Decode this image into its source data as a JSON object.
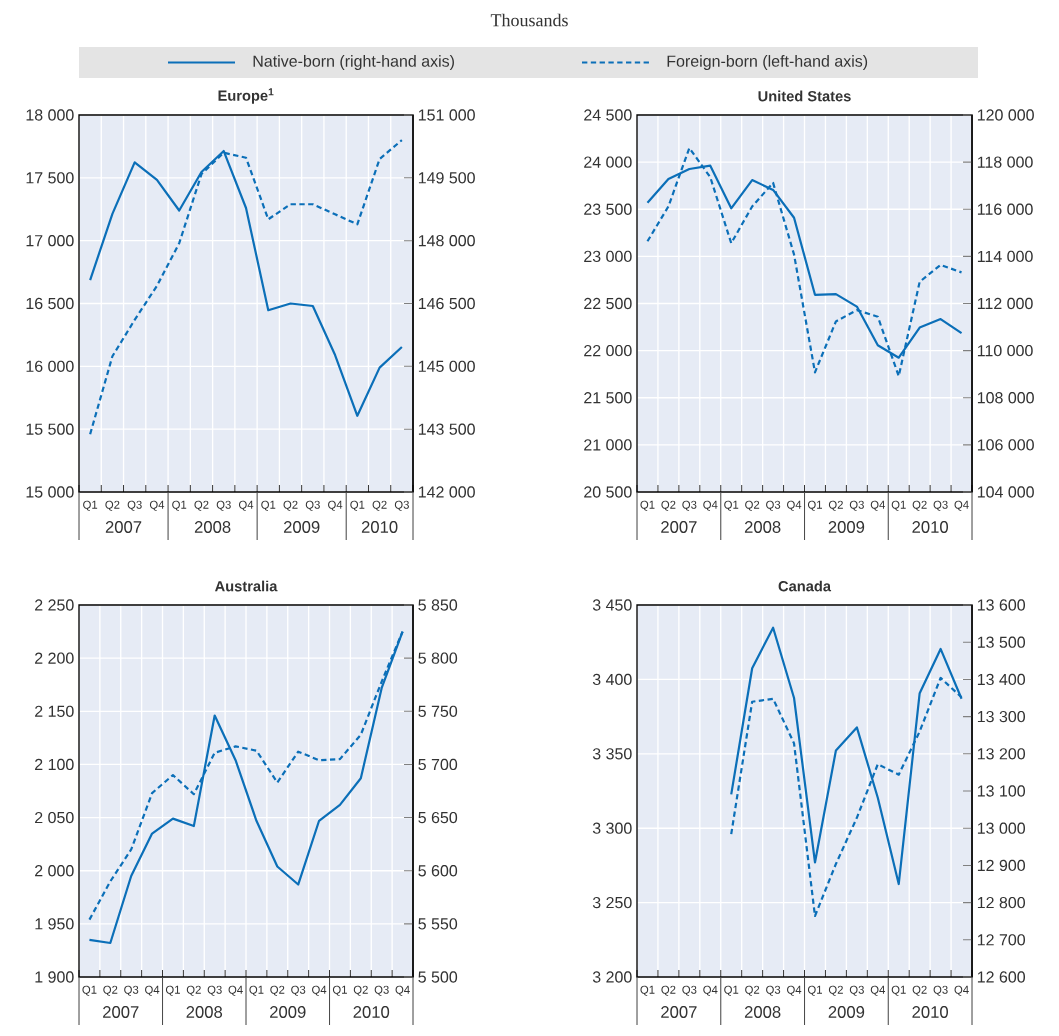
{
  "chart_data": [
    {
      "type": "other",
      "subtitle": "Thousands"
    },
    {
      "type": "line",
      "title": "Europe$^{1}$",
      "legend": "top",
      "grid": true,
      "categories": [
        "Q1",
        "Q2",
        "Q3",
        "Q4",
        "Q1",
        "Q2",
        "Q3",
        "Q4",
        "Q1",
        "Q2",
        "Q3",
        "Q4",
        "Q1",
        "Q2",
        "Q3"
      ],
      "annotations": [
        "2007",
        "2008",
        "2009",
        "2010"
      ],
      "ylim": [
        15000,
        18000
      ],
      "yticks": [
        {
          "value": 15000,
          "label": "15 000"
        },
        {
          "value": 15500,
          "label": "15 500"
        },
        {
          "value": 16000,
          "label": "16 000"
        },
        {
          "value": 16500,
          "label": "16 500"
        },
        {
          "value": 17000,
          "label": "17 000"
        },
        {
          "value": 17500,
          "label": "17 500"
        },
        {
          "value": 18000,
          "label": "18 000"
        }
      ],
      "y2lim": [
        142000,
        151000
      ],
      "y2ticks": [
        {
          "value": 142000,
          "label": "142 000"
        },
        {
          "value": 143500,
          "label": "143 500"
        },
        {
          "value": 145000,
          "label": "145 000"
        },
        {
          "value": 146500,
          "label": "146 500"
        },
        {
          "value": 148000,
          "label": "148 000"
        },
        {
          "value": 149500,
          "label": "149 500"
        },
        {
          "value": 151000,
          "label": "151 000"
        }
      ],
      "series": [
        {
          "name": "Native-born (right-hand axis)",
          "axis": "y2",
          "line_style": "solid",
          "color": "#0b6fb8",
          "values": [
            147060,
            148640,
            149870,
            149450,
            148720,
            149640,
            150140,
            148780,
            146340,
            146500,
            146440,
            145270,
            143820,
            144970,
            145460
          ]
        },
        {
          "name": "Foreign-born (left-hand axis)",
          "axis": "y",
          "line_style": "dashed",
          "color": "#0b6fb8",
          "values": [
            15460,
            16080,
            16370,
            16640,
            16980,
            17530,
            17700,
            17660,
            17170,
            17290,
            17290,
            17210,
            17130,
            17650,
            17800
          ]
        }
      ]
    },
    {
      "type": "line",
      "title": "United States",
      "grid": true,
      "categories": [
        "Q1",
        "Q2",
        "Q3",
        "Q4",
        "Q1",
        "Q2",
        "Q3",
        "Q4",
        "Q1",
        "Q2",
        "Q3",
        "Q4",
        "Q1",
        "Q2",
        "Q3",
        "Q4"
      ],
      "annotations": [
        "2007",
        "2008",
        "2009",
        "2010"
      ],
      "ylim": [
        20500,
        24500
      ],
      "yticks": [
        {
          "value": 20500,
          "label": "20 500"
        },
        {
          "value": 21000,
          "label": "21 000"
        },
        {
          "value": 21500,
          "label": "21 500"
        },
        {
          "value": 22000,
          "label": "22 000"
        },
        {
          "value": 22500,
          "label": "22 500"
        },
        {
          "value": 23000,
          "label": "23 000"
        },
        {
          "value": 23500,
          "label": "23 500"
        },
        {
          "value": 24000,
          "label": "24 000"
        },
        {
          "value": 24500,
          "label": "24 500"
        }
      ],
      "y2lim": [
        104000,
        120000
      ],
      "y2ticks": [
        {
          "value": 104000,
          "label": "104 000"
        },
        {
          "value": 106000,
          "label": "106 000"
        },
        {
          "value": 108000,
          "label": "108 000"
        },
        {
          "value": 110000,
          "label": "110 000"
        },
        {
          "value": 112000,
          "label": "112 000"
        },
        {
          "value": 114000,
          "label": "114 000"
        },
        {
          "value": 116000,
          "label": "116 000"
        },
        {
          "value": 118000,
          "label": "118 000"
        },
        {
          "value": 120000,
          "label": "120 000"
        }
      ],
      "series": [
        {
          "axis": "y2",
          "line_style": "solid",
          "color": "#0b6fb8",
          "values": [
            116280,
            117280,
            117710,
            117850,
            116040,
            117240,
            116820,
            115640,
            112370,
            112400,
            111870,
            110230,
            109700,
            110980,
            111340,
            110740
          ]
        },
        {
          "axis": "y",
          "line_style": "dashed",
          "color": "#0b6fb8",
          "values": [
            23160,
            23530,
            24150,
            23840,
            23140,
            23530,
            23780,
            23020,
            21770,
            22310,
            22430,
            22360,
            21730,
            22730,
            22910,
            22830
          ]
        }
      ]
    },
    {
      "type": "line",
      "title": "Australia",
      "grid": true,
      "categories": [
        "Q1",
        "Q2",
        "Q3",
        "Q4",
        "Q1",
        "Q2",
        "Q3",
        "Q4",
        "Q1",
        "Q2",
        "Q3",
        "Q4",
        "Q1",
        "Q2",
        "Q3",
        "Q4"
      ],
      "annotations": [
        "2007",
        "2008",
        "2009",
        "2010"
      ],
      "ylim": [
        1900,
        2250
      ],
      "yticks": [
        {
          "value": 1900,
          "label": "1 900"
        },
        {
          "value": 1950,
          "label": "1 950"
        },
        {
          "value": 2000,
          "label": "2 000"
        },
        {
          "value": 2050,
          "label": "2 050"
        },
        {
          "value": 2100,
          "label": "2 100"
        },
        {
          "value": 2150,
          "label": "2 150"
        },
        {
          "value": 2200,
          "label": "2 200"
        },
        {
          "value": 2250,
          "label": "2 250"
        }
      ],
      "y2lim": [
        5500,
        5850
      ],
      "y2ticks": [
        {
          "value": 5500,
          "label": "5 500"
        },
        {
          "value": 5550,
          "label": "5 550"
        },
        {
          "value": 5600,
          "label": "5 600"
        },
        {
          "value": 5650,
          "label": "5 650"
        },
        {
          "value": 5700,
          "label": "5 700"
        },
        {
          "value": 5750,
          "label": "5 750"
        },
        {
          "value": 5800,
          "label": "5 800"
        },
        {
          "value": 5850,
          "label": "5 850"
        }
      ],
      "series": [
        {
          "axis": "y2",
          "line_style": "solid",
          "color": "#0b6fb8",
          "values": [
            5535,
            5532,
            5595,
            5635,
            5649,
            5642,
            5746,
            5704,
            5647,
            5604,
            5587,
            5647,
            5662,
            5687,
            5772,
            5825
          ]
        },
        {
          "axis": "y",
          "line_style": "dashed",
          "color": "#0b6fb8",
          "values": [
            1954,
            1990,
            2020,
            2073,
            2090,
            2072,
            2111,
            2117,
            2113,
            2083,
            2112,
            2104,
            2105,
            2128,
            2178,
            2225
          ]
        }
      ]
    },
    {
      "type": "line",
      "title": "Canada",
      "grid": true,
      "categories": [
        "Q1",
        "Q2",
        "Q3",
        "Q4",
        "Q1",
        "Q2",
        "Q3",
        "Q4",
        "Q1",
        "Q2",
        "Q3",
        "Q4",
        "Q1",
        "Q2",
        "Q3",
        "Q4"
      ],
      "annotations": [
        "2007",
        "2008",
        "2009",
        "2010"
      ],
      "ylim": [
        3200,
        3450
      ],
      "yticks": [
        {
          "value": 3200,
          "label": "3 200"
        },
        {
          "value": 3250,
          "label": "3 250"
        },
        {
          "value": 3300,
          "label": "3 300"
        },
        {
          "value": 3350,
          "label": "3 350"
        },
        {
          "value": 3400,
          "label": "3 400"
        },
        {
          "value": 3450,
          "label": "3 450"
        }
      ],
      "y2lim": [
        12600,
        13600
      ],
      "y2ticks": [
        {
          "value": 12600,
          "label": "12 600"
        },
        {
          "value": 12700,
          "label": "12 700"
        },
        {
          "value": 12800,
          "label": "12 800"
        },
        {
          "value": 12900,
          "label": "12 900"
        },
        {
          "value": 13000,
          "label": "13 000"
        },
        {
          "value": 13100,
          "label": "13 100"
        },
        {
          "value": 13200,
          "label": "13 200"
        },
        {
          "value": 13300,
          "label": "13 300"
        },
        {
          "value": 13400,
          "label": "13 400"
        },
        {
          "value": 13500,
          "label": "13 500"
        },
        {
          "value": 13600,
          "label": "13 600"
        }
      ],
      "series": [
        {
          "axis": "y2",
          "line_style": "solid",
          "color": "#0b6fb8",
          "values": [
            null,
            null,
            null,
            null,
            13091,
            13430,
            13539,
            13350,
            12908,
            13209,
            13271,
            13082,
            12850,
            13363,
            13482,
            13348
          ]
        },
        {
          "axis": "y",
          "line_style": "dashed",
          "color": "#0b6fb8",
          "values": [
            null,
            null,
            null,
            null,
            3296,
            3385,
            3387,
            3357,
            3241,
            3276,
            3307,
            3343,
            3336,
            3365,
            3401,
            3388
          ]
        }
      ]
    }
  ]
}
